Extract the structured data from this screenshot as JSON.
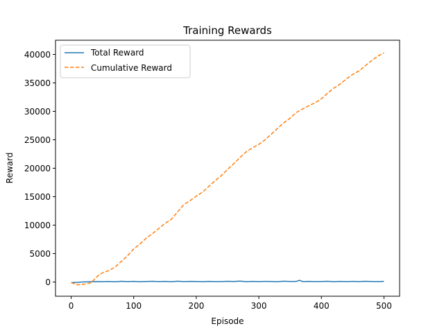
{
  "chart_data": {
    "type": "line",
    "title": "Training Rewards",
    "xlabel": "Episode",
    "ylabel": "Reward",
    "xlim": [
      -25,
      525
    ],
    "ylim": [
      -2500,
      42500
    ],
    "xticks": [
      0,
      100,
      200,
      300,
      400,
      500
    ],
    "yticks": [
      0,
      5000,
      10000,
      15000,
      20000,
      25000,
      30000,
      35000,
      40000
    ],
    "grid": false,
    "legend": "top-left",
    "series": [
      {
        "name": "Total Reward",
        "color": "#1f77b4",
        "style": "solid",
        "x": [
          0,
          10,
          20,
          30,
          40,
          50,
          60,
          70,
          80,
          90,
          100,
          110,
          120,
          130,
          140,
          150,
          160,
          170,
          180,
          190,
          200,
          210,
          220,
          230,
          240,
          250,
          260,
          270,
          280,
          290,
          300,
          310,
          320,
          330,
          340,
          350,
          360,
          365,
          370,
          380,
          390,
          400,
          410,
          420,
          430,
          440,
          450,
          460,
          470,
          480,
          490,
          500
        ],
        "values": [
          -100,
          -60,
          20,
          40,
          80,
          60,
          90,
          50,
          120,
          70,
          110,
          60,
          90,
          120,
          70,
          100,
          60,
          130,
          80,
          100,
          90,
          60,
          110,
          80,
          70,
          120,
          90,
          150,
          60,
          100,
          70,
          110,
          90,
          60,
          130,
          90,
          100,
          300,
          80,
          110,
          70,
          90,
          120,
          60,
          100,
          80,
          110,
          70,
          120,
          90,
          80,
          100
        ]
      },
      {
        "name": "Cumulative Reward",
        "color": "#ff7f0e",
        "style": "dashed",
        "x": [
          0,
          10,
          20,
          30,
          35,
          40,
          45,
          50,
          60,
          70,
          80,
          90,
          100,
          110,
          120,
          130,
          140,
          150,
          160,
          170,
          180,
          190,
          200,
          210,
          220,
          230,
          240,
          250,
          260,
          270,
          280,
          290,
          300,
          310,
          320,
          330,
          340,
          350,
          360,
          370,
          380,
          390,
          400,
          410,
          420,
          430,
          440,
          450,
          460,
          470,
          480,
          490,
          500
        ],
        "values": [
          -100,
          -500,
          -400,
          -200,
          200,
          800,
          1300,
          1600,
          2000,
          2600,
          3600,
          4600,
          5800,
          6700,
          7700,
          8500,
          9400,
          10300,
          11000,
          12300,
          13600,
          14300,
          15100,
          15800,
          16800,
          17800,
          18700,
          19800,
          20800,
          21900,
          22900,
          23600,
          24200,
          25000,
          26000,
          27000,
          28000,
          28800,
          29800,
          30400,
          31000,
          31500,
          32200,
          33200,
          34100,
          34800,
          35700,
          36500,
          37100,
          38000,
          38900,
          39700,
          40300
        ]
      }
    ]
  }
}
